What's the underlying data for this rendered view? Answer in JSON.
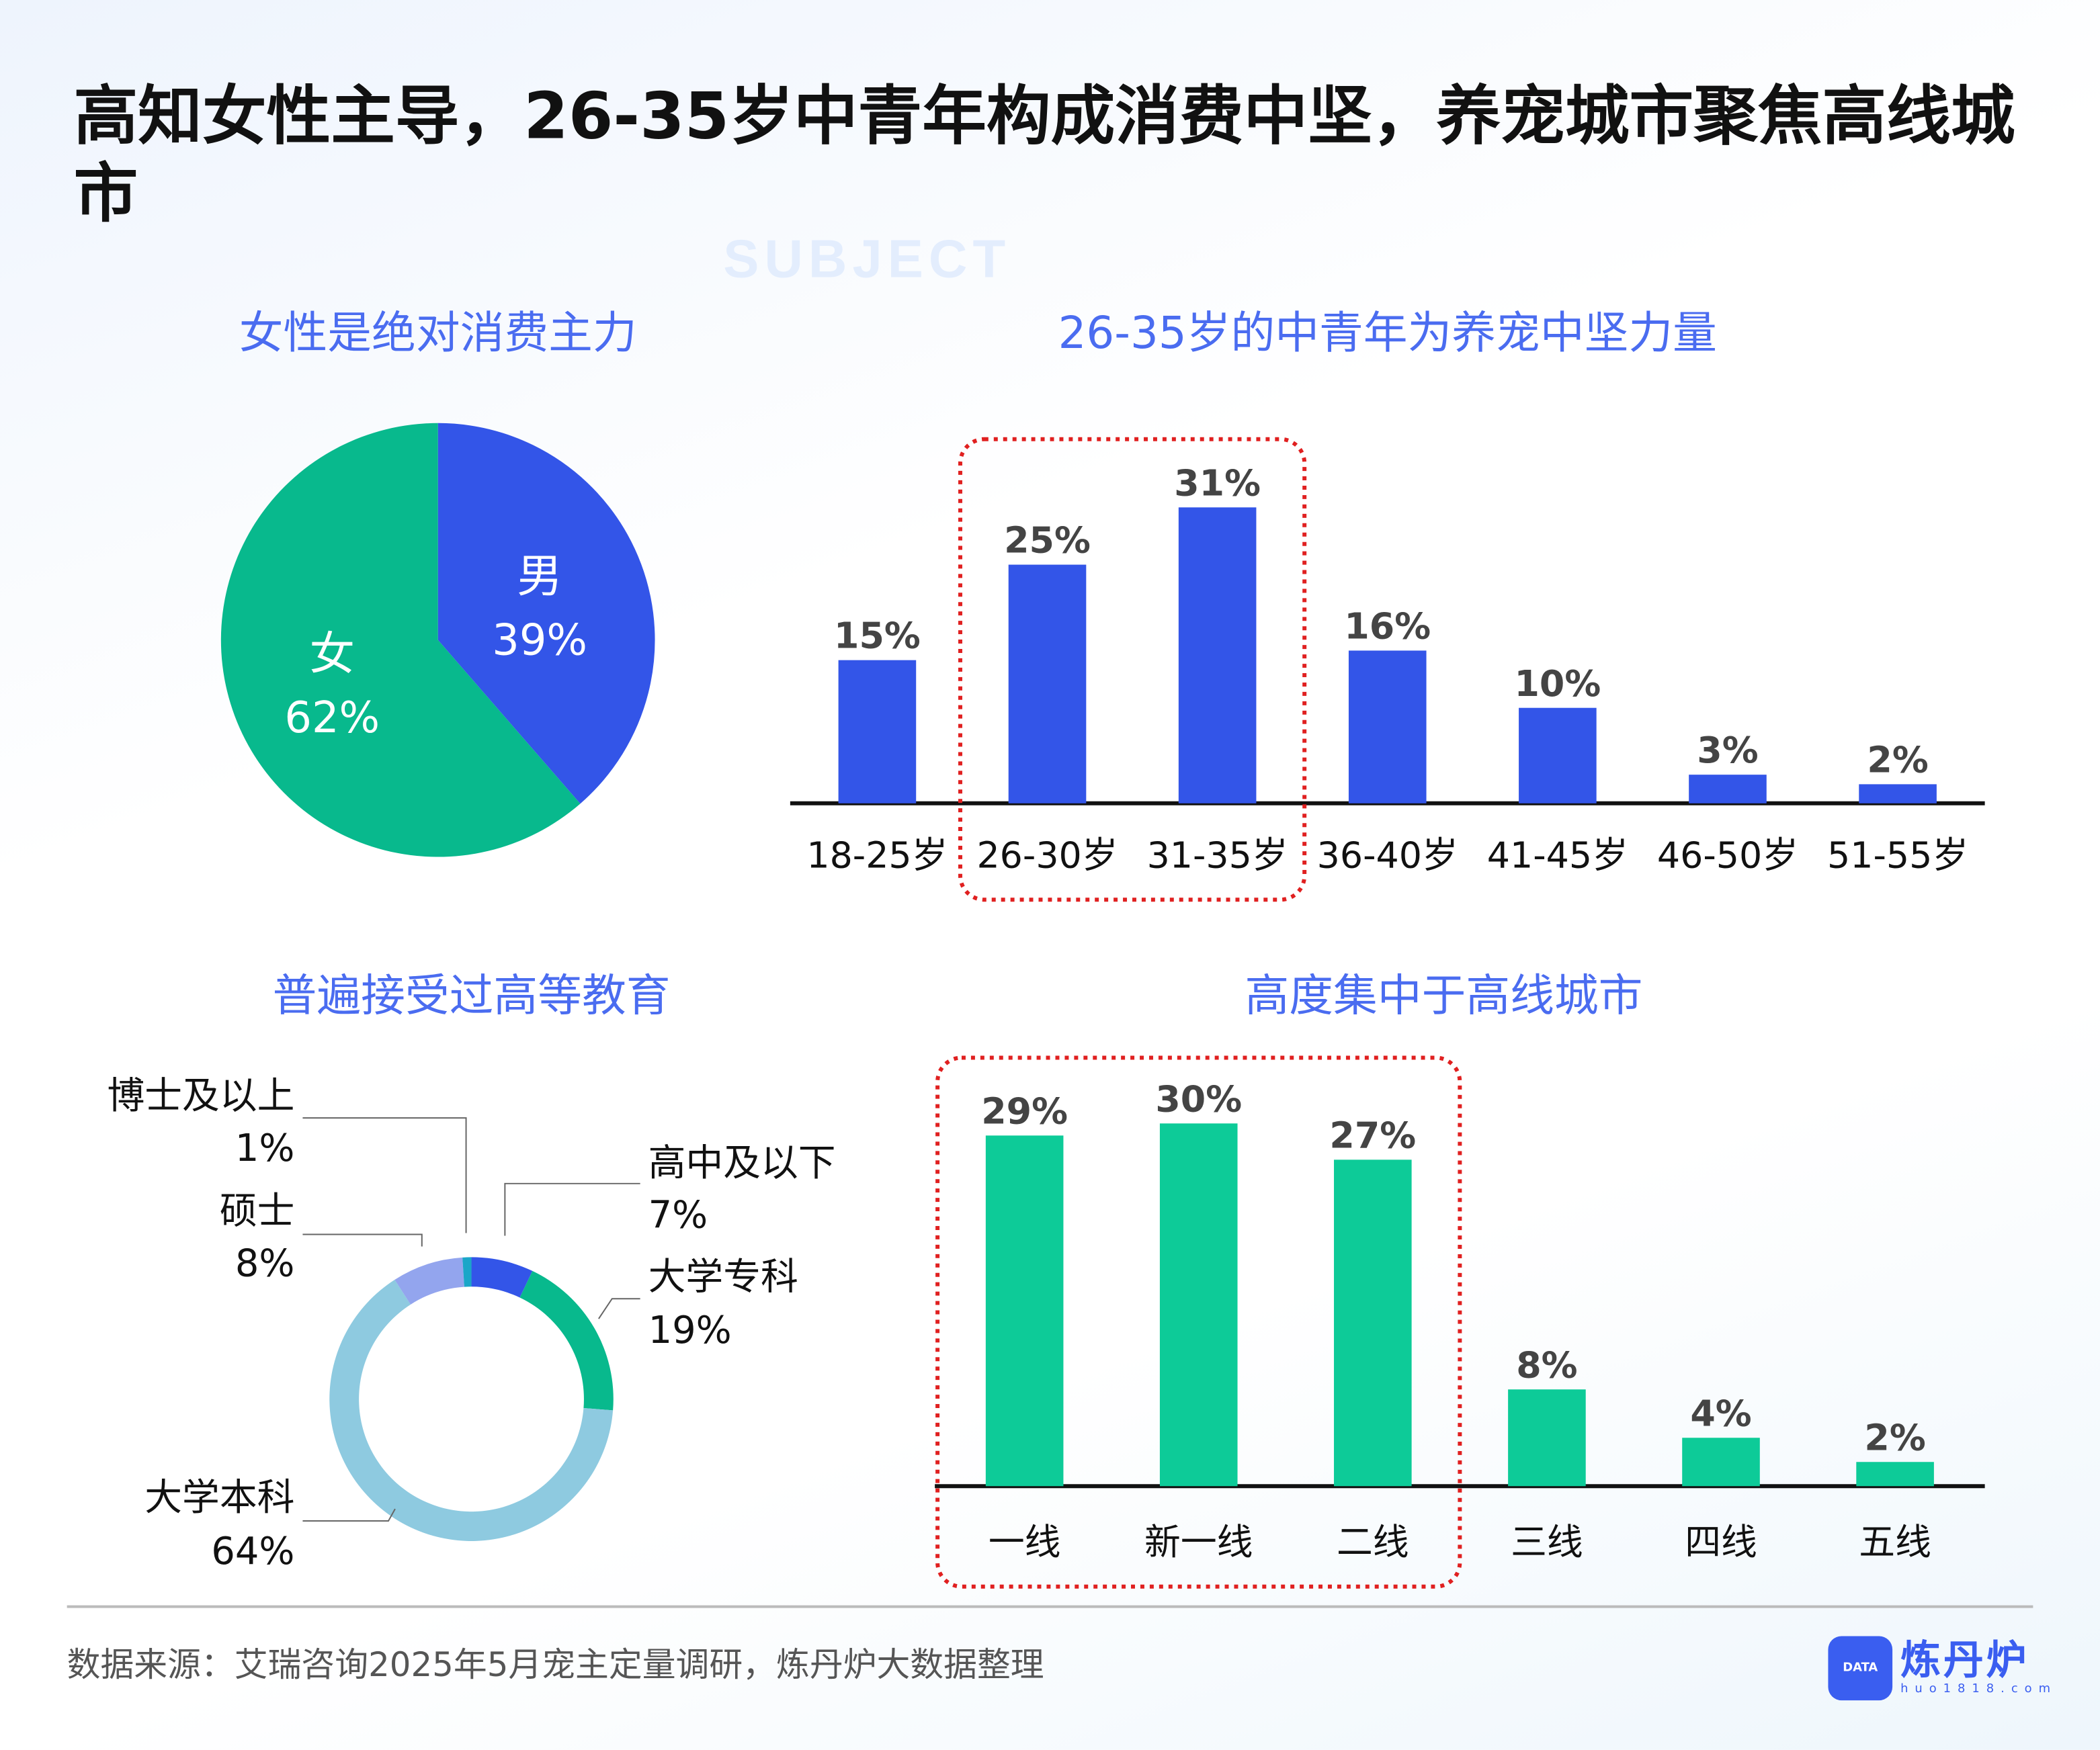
{
  "watermark": "SUBJECT",
  "title": "高知女性主导，26-35岁中青年构成消费中坚，养宠城市聚焦高线城市",
  "colors": {
    "blue": "#3355e8",
    "green": "#08b98d",
    "teal": "#0dcb98",
    "light_blue": "#8ecae0",
    "lavender": "#93a5ee",
    "cyan": "#1aa6c8",
    "subtitle": "#4a6cf0",
    "highlight": "#e02020"
  },
  "chart_data": [
    {
      "type": "pie",
      "title": "女性是绝对消费主力",
      "slices": [
        {
          "label": "男",
          "value": 39,
          "display": "39%"
        },
        {
          "label": "女",
          "value": 62,
          "display": "62%"
        }
      ]
    },
    {
      "type": "bar",
      "title": "26-35岁的中青年为养宠中坚力量",
      "categories": [
        "18-25岁",
        "26-30岁",
        "31-35岁",
        "36-40岁",
        "41-45岁",
        "46-50岁",
        "51-55岁"
      ],
      "values": [
        15,
        25,
        31,
        16,
        10,
        3,
        2
      ],
      "labels": [
        "15%",
        "25%",
        "31%",
        "16%",
        "10%",
        "3%",
        "2%"
      ],
      "highlight": [
        "26-30岁",
        "31-35岁"
      ],
      "ylim": [
        0,
        35
      ]
    },
    {
      "type": "pie",
      "subtype": "donut",
      "title": "普遍接受过高等教育",
      "slices": [
        {
          "label": "高中及以下",
          "value": 7,
          "display": "7%"
        },
        {
          "label": "大学专科",
          "value": 19,
          "display": "19%"
        },
        {
          "label": "大学本科",
          "value": 64,
          "display": "64%"
        },
        {
          "label": "硕士",
          "value": 8,
          "display": "8%"
        },
        {
          "label": "博士及以上",
          "value": 1,
          "display": "1%"
        }
      ]
    },
    {
      "type": "bar",
      "title": "高度集中于高线城市",
      "categories": [
        "一线",
        "新一线",
        "二线",
        "三线",
        "四线",
        "五线"
      ],
      "values": [
        29,
        30,
        27,
        8,
        4,
        2
      ],
      "labels": [
        "29%",
        "30%",
        "27%",
        "8%",
        "4%",
        "2%"
      ],
      "highlight": [
        "一线",
        "新一线",
        "二线"
      ],
      "ylim": [
        0,
        33
      ]
    }
  ],
  "footer": {
    "source": "数据来源：艾瑞咨询2025年5月宠主定量调研，炼丹炉大数据整理",
    "logo_name": "炼丹炉",
    "logo_url": "huo1818.com",
    "logo_badge": "DATA"
  }
}
